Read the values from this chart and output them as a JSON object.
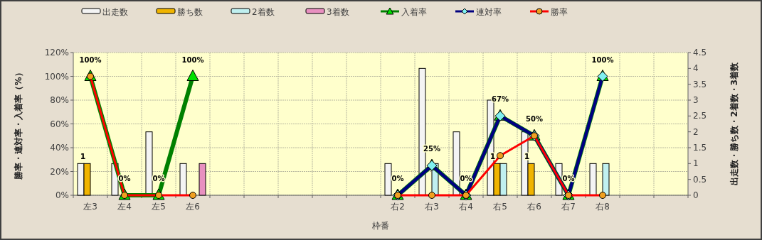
{
  "chart_data": {
    "type": "bar",
    "xlabel": "枠番",
    "ylabel": "勝率・連対率・入着率（%）",
    "y2label": "出走数・勝ち数・2着数・3着数",
    "categories": [
      "左3",
      "左4",
      "左5",
      "左6",
      null,
      null,
      null,
      null,
      null,
      "右2",
      "右3",
      "右4",
      "右5",
      "右6",
      "右7",
      "右8",
      null,
      null
    ],
    "series": [
      {
        "name": "出走数",
        "axis": "y2",
        "color": "#f4f4f4",
        "values": [
          1,
          1,
          2,
          1,
          null,
          null,
          null,
          null,
          null,
          1,
          4,
          2,
          3,
          2,
          1,
          1,
          null,
          null
        ]
      },
      {
        "name": "勝ち数",
        "axis": "y2",
        "color": "#f0b400",
        "values": [
          1,
          0,
          0,
          0,
          null,
          null,
          null,
          null,
          null,
          0,
          0,
          0,
          1,
          1,
          0,
          0,
          null,
          null
        ],
        "value_labels": [
          "1",
          null,
          null,
          null,
          null,
          null,
          null,
          null,
          null,
          null,
          null,
          null,
          "1",
          "1",
          null,
          null,
          null,
          null
        ]
      },
      {
        "name": "2着数",
        "axis": "y2",
        "color": "#c0f0f0",
        "values": [
          0,
          0,
          0,
          0,
          null,
          null,
          null,
          null,
          null,
          0,
          1,
          0,
          1,
          0,
          0,
          1,
          null,
          null
        ]
      },
      {
        "name": "3着数",
        "axis": "y2",
        "color": "#e890c0",
        "values": [
          0,
          0,
          0,
          1,
          null,
          null,
          null,
          null,
          null,
          0,
          0,
          0,
          0,
          0,
          0,
          0,
          null,
          null
        ]
      },
      {
        "name": "入着率",
        "type": "line",
        "marker": "triangle",
        "color": "#008000",
        "colors": [
          "#00e000",
          "#00e000",
          "#00e000",
          "#00e000",
          null,
          null,
          null,
          null,
          null,
          "#00e000",
          "#00e000",
          "#00e000",
          "#00e000",
          "#00e000",
          "#00e000",
          "#00e000",
          null,
          null
        ],
        "values": [
          100,
          0,
          0,
          100,
          null,
          null,
          null,
          null,
          null,
          0,
          25,
          0,
          66.7,
          50,
          0,
          100,
          null,
          null
        ],
        "value_labels": [
          "100%",
          "0%",
          "0%",
          "100%",
          null,
          null,
          null,
          null,
          null,
          "0%",
          "25%",
          "0%",
          "67%",
          "50%",
          "0%",
          "100%",
          null,
          null
        ]
      },
      {
        "name": "連対率",
        "type": "line",
        "marker": "diamond",
        "color": "#000080",
        "colors": [
          null,
          null,
          null,
          null,
          null,
          null,
          null,
          null,
          null,
          "#80f0f0",
          "#80f0f0",
          "#80f0f0",
          "#80f0f0",
          "#80f0f0",
          "#80f0f0",
          "#80f0f0",
          null,
          null
        ],
        "values": [
          null,
          null,
          null,
          null,
          null,
          null,
          null,
          null,
          null,
          0,
          25,
          0,
          66.7,
          50,
          0,
          100,
          null,
          null
        ]
      },
      {
        "name": "勝率",
        "type": "line",
        "marker": "circle",
        "color": "#ff0000",
        "colors": [
          "#f0a020",
          "#f0a020",
          "#f0a020",
          "#f0a020",
          null,
          null,
          null,
          null,
          null,
          "#f0a020",
          "#f0a020",
          "#f0a020",
          "#f0a020",
          "#f0a020",
          "#f0a020",
          "#f0a020",
          null,
          null
        ],
        "values": [
          100,
          0,
          0,
          0,
          null,
          null,
          null,
          null,
          null,
          0,
          0,
          0,
          33.3,
          50,
          0,
          0,
          null,
          null
        ]
      }
    ],
    "ylim": [
      0,
      120
    ],
    "yticks": [
      {
        "value": 0,
        "label": "0%"
      },
      {
        "value": 20,
        "label": "20%"
      },
      {
        "value": 40,
        "label": "40%"
      },
      {
        "value": 60,
        "label": "60%"
      },
      {
        "value": 80,
        "label": "80%"
      },
      {
        "value": 100,
        "label": "100%"
      },
      {
        "value": 120,
        "label": "120%"
      }
    ],
    "y2lim": [
      0,
      4.5
    ],
    "y2ticks": [
      0,
      0.5,
      1,
      1.5,
      2,
      2.5,
      3,
      3.5,
      4,
      4.5
    ],
    "grid": true,
    "legend": "top",
    "line_style": "solid"
  }
}
